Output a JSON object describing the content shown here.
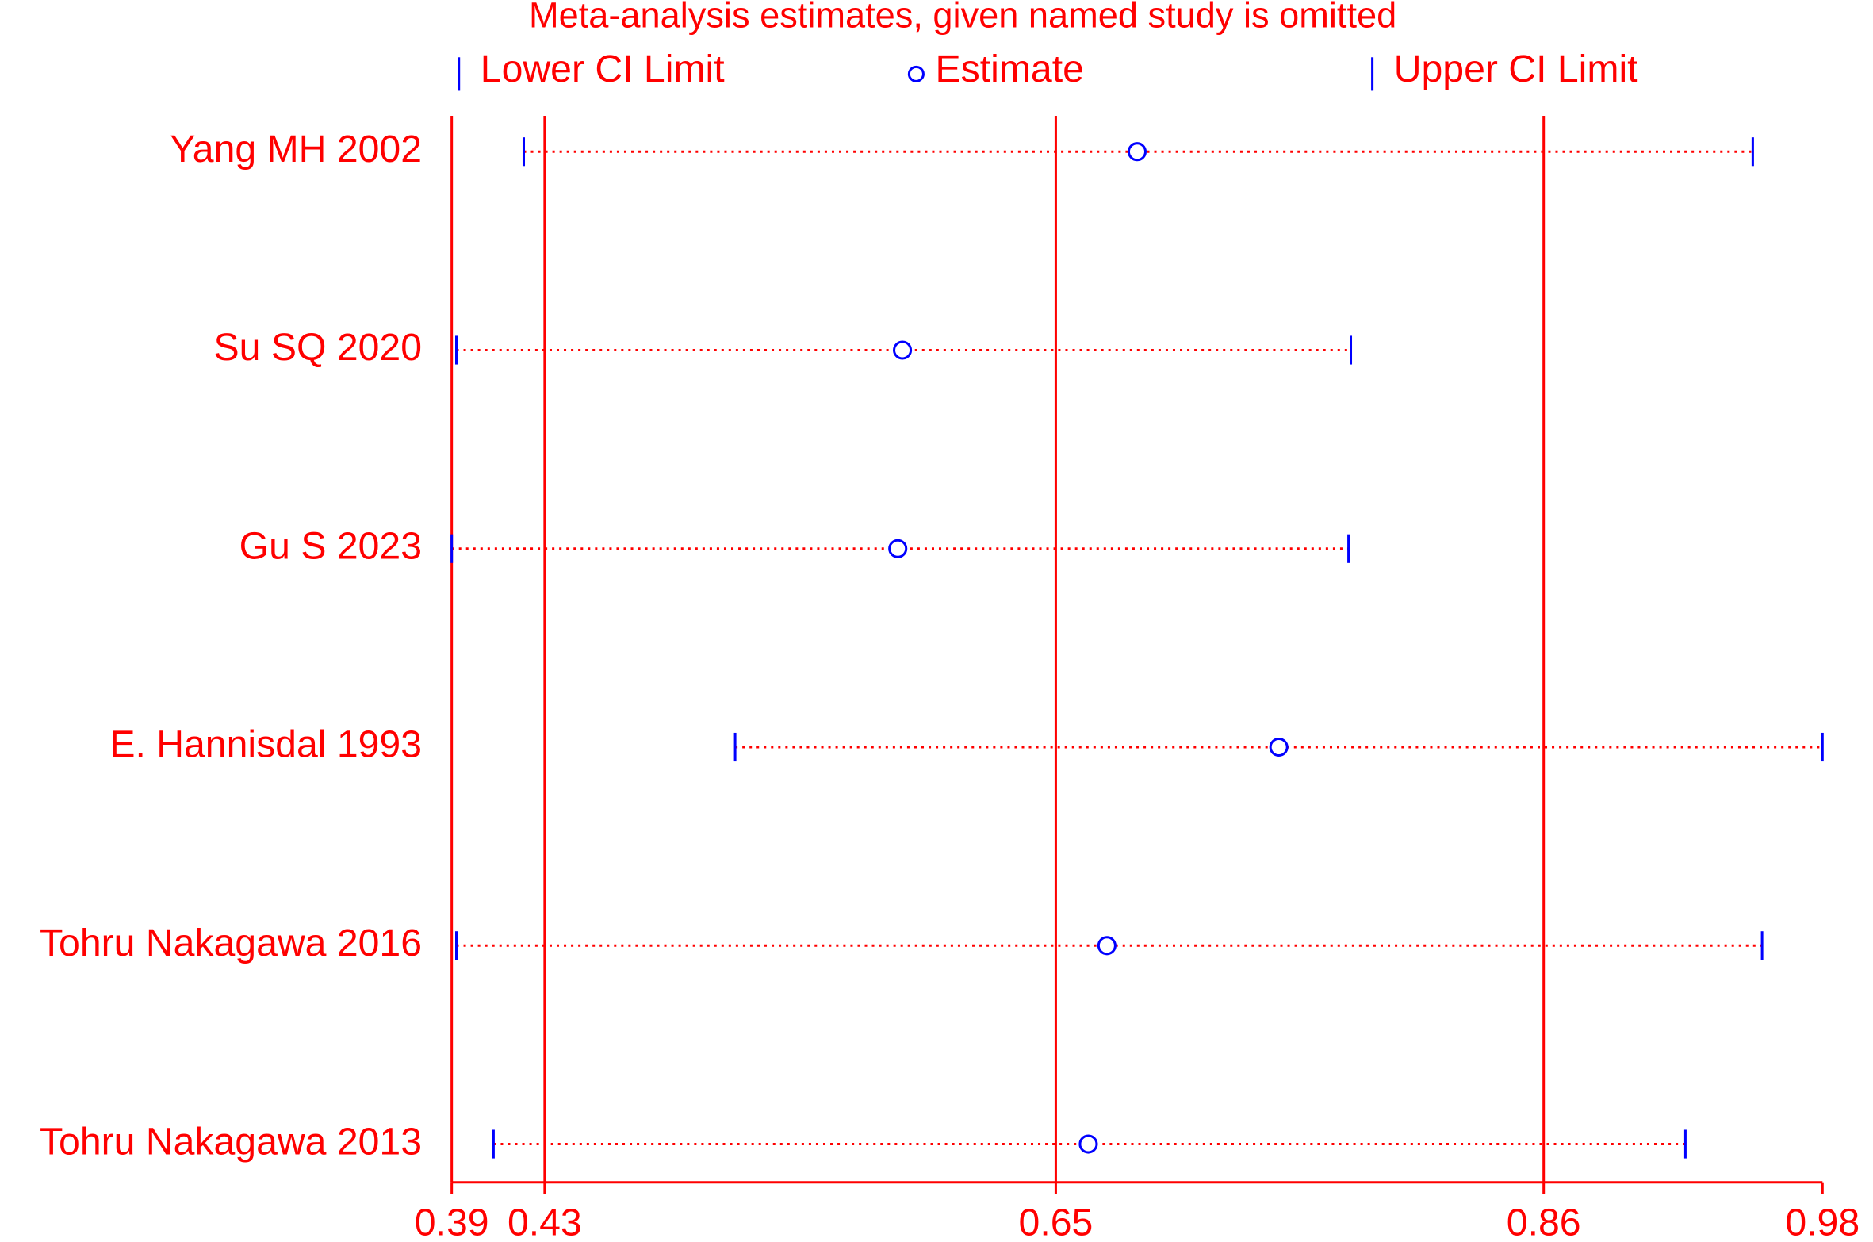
{
  "chart_data": {
    "type": "forest",
    "title": "Meta-analysis estimates, given named study is omitted",
    "categories": [
      "Yang MH 2002",
      "Su SQ 2020",
      "Gu S 2023",
      "E. Hannisdal 1993",
      "Tohru Nakagawa 2016",
      "Tohru Nakagawa 2013"
    ],
    "series": [
      {
        "name": "Lower CI Limit",
        "color": "#0000ff",
        "values": [
          0.421,
          0.392,
          0.39,
          0.512,
          0.392,
          0.408
        ]
      },
      {
        "name": "Estimate",
        "color": "#0000ff",
        "values": [
          0.685,
          0.584,
          0.582,
          0.746,
          0.672,
          0.664
        ]
      },
      {
        "name": "Upper CI Limit",
        "color": "#0000ff",
        "values": [
          0.95,
          0.777,
          0.776,
          0.98,
          0.954,
          0.921
        ]
      }
    ],
    "xlim": [
      0.39,
      0.98
    ],
    "xticks": [
      0.39,
      0.43,
      0.65,
      0.86,
      0.98
    ],
    "reference_lines": [
      0.39,
      0.43,
      0.65,
      0.86
    ],
    "line_color": "#ff0000"
  }
}
